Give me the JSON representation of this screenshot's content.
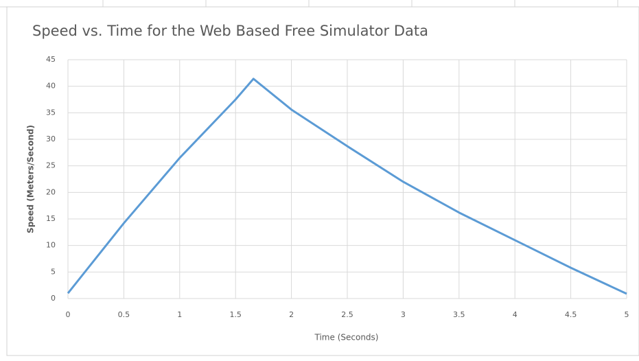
{
  "chart_data": {
    "type": "line",
    "title": "Speed vs. Time for the Web Based Free Simulator Data",
    "x_label": "Time (Seconds)",
    "y_label": "Speed (Meters/Second)",
    "series": [
      {
        "name": "Speed",
        "color": "#5b9bd5",
        "x": [
          0,
          0.5,
          1,
          1.5,
          1.66,
          2,
          2.5,
          3,
          3.5,
          4,
          4.5,
          5
        ],
        "values": [
          1,
          14.2,
          26.5,
          37.5,
          41.4,
          35.6,
          28.7,
          22,
          16.2,
          11,
          5.8,
          0.9
        ]
      }
    ],
    "xlim": [
      0,
      5
    ],
    "xticks": [
      0,
      0.5,
      1,
      1.5,
      2,
      2.5,
      3,
      3.5,
      4,
      4.5,
      5
    ],
    "ylim": [
      0,
      45
    ],
    "yticks": [
      0,
      5,
      10,
      15,
      20,
      25,
      30,
      35,
      40,
      45
    ],
    "grid": true
  }
}
